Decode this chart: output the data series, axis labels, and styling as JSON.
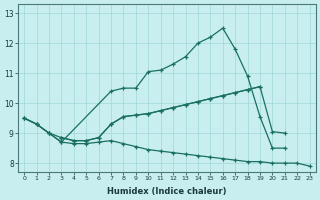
{
  "xlabel": "Humidex (Indice chaleur)",
  "xlim": [
    -0.5,
    23.5
  ],
  "ylim": [
    7.7,
    13.3
  ],
  "bg_color": "#c8eef0",
  "line_color": "#1a7060",
  "grid_color": "#a0d8d8",
  "xticks": [
    0,
    1,
    2,
    3,
    4,
    5,
    6,
    7,
    8,
    9,
    10,
    11,
    12,
    13,
    14,
    15,
    16,
    17,
    18,
    19,
    20,
    21,
    22,
    23
  ],
  "yticks": [
    8,
    9,
    10,
    11,
    12,
    13
  ],
  "line_top_x": [
    0,
    1,
    2,
    3,
    7,
    8,
    9,
    10,
    11,
    12,
    13,
    14,
    15,
    16,
    17,
    18,
    19,
    20,
    21
  ],
  "line_top_y": [
    9.5,
    9.3,
    9.0,
    8.7,
    10.4,
    10.5,
    10.5,
    11.05,
    11.1,
    11.3,
    11.55,
    12.0,
    12.2,
    12.5,
    11.8,
    10.9,
    9.55,
    8.5,
    8.5
  ],
  "line_diag_x": [
    0,
    1,
    2,
    3,
    4,
    5,
    6,
    7,
    8,
    9,
    10,
    11,
    12,
    13,
    14,
    15,
    16,
    17,
    18,
    19,
    20,
    21
  ],
  "line_diag_y": [
    9.5,
    9.3,
    9.0,
    8.85,
    8.75,
    8.75,
    8.85,
    9.3,
    9.55,
    9.6,
    9.65,
    9.75,
    9.85,
    9.95,
    10.05,
    10.15,
    10.25,
    10.35,
    10.45,
    10.55,
    9.05,
    9.0
  ],
  "line_bot_x": [
    0,
    1,
    2,
    3,
    4,
    5,
    6,
    7,
    8,
    9,
    10,
    11,
    12,
    13,
    14,
    15,
    16,
    17,
    18,
    19,
    20,
    21,
    22,
    23
  ],
  "line_bot_y": [
    9.5,
    9.3,
    9.0,
    8.7,
    8.65,
    8.65,
    8.7,
    8.75,
    8.65,
    8.55,
    8.45,
    8.4,
    8.35,
    8.3,
    8.25,
    8.2,
    8.15,
    8.1,
    8.05,
    8.05,
    8.0,
    8.0,
    8.0,
    7.9
  ],
  "line_mid_x": [
    3,
    4,
    5,
    6,
    7,
    8,
    9,
    10,
    11,
    12,
    13,
    14,
    15,
    16,
    17,
    18,
    19
  ],
  "line_mid_y": [
    8.85,
    8.75,
    8.75,
    8.85,
    9.3,
    9.55,
    9.6,
    9.65,
    9.75,
    9.85,
    9.95,
    10.05,
    10.15,
    10.25,
    10.35,
    10.45,
    10.55
  ]
}
